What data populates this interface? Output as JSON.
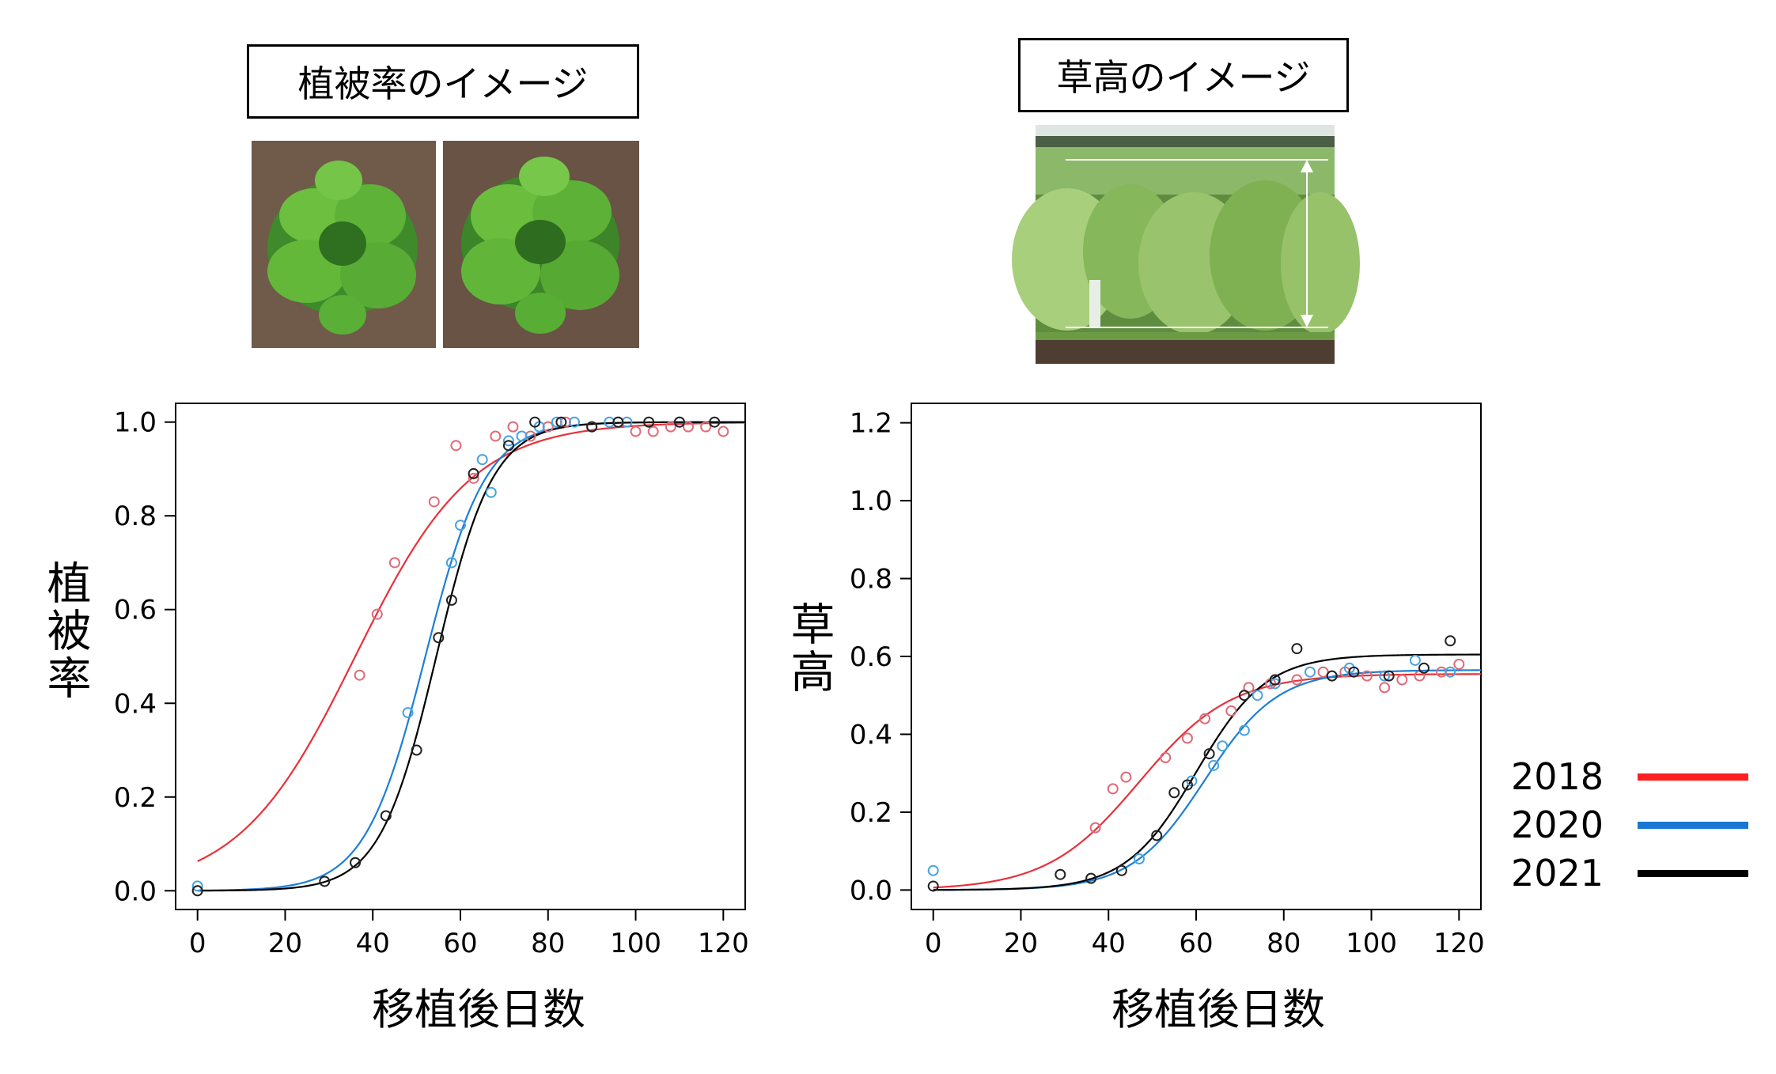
{
  "captions": {
    "cover_image": "植被率のイメージ",
    "height_image": "草高のイメージ"
  },
  "colors": {
    "2018": "#e8313a",
    "2020": "#1c7fd6",
    "2021": "#000000",
    "point_2018": "#e06b78",
    "point_2020": "#4aa3df",
    "point_2021": "#222222"
  },
  "legend": [
    {
      "label": "2018",
      "color": "#ff2020"
    },
    {
      "label": "2020",
      "color": "#1a78d2"
    },
    {
      "label": "2021",
      "color": "#000000"
    }
  ],
  "chart_data": [
    {
      "type": "scatter",
      "ylabel": "植被率",
      "xlabel": "移植後日数",
      "xlim": [
        -5,
        125
      ],
      "ylim": [
        -0.04,
        1.04
      ],
      "xticks": [
        "0",
        "20",
        "40",
        "60",
        "80",
        "100",
        "120"
      ],
      "yticks": [
        "0.0",
        "0.2",
        "0.4",
        "0.6",
        "0.8",
        "1.0"
      ],
      "series": [
        {
          "name": "2018",
          "points": [
            [
              0,
              0.0
            ],
            [
              37,
              0.46
            ],
            [
              41,
              0.59
            ],
            [
              45,
              0.7
            ],
            [
              54,
              0.83
            ],
            [
              59,
              0.95
            ],
            [
              63,
              0.88
            ],
            [
              68,
              0.97
            ],
            [
              72,
              0.99
            ],
            [
              76,
              0.97
            ],
            [
              80,
              0.99
            ],
            [
              84,
              1.0
            ],
            [
              90,
              0.99
            ],
            [
              96,
              1.0
            ],
            [
              100,
              0.98
            ],
            [
              104,
              0.98
            ],
            [
              108,
              0.99
            ],
            [
              112,
              0.99
            ],
            [
              116,
              0.99
            ],
            [
              120,
              0.98
            ]
          ],
          "curve": {
            "kind": "logistic",
            "A": 1.0,
            "x0": 36,
            "k": 0.075
          }
        },
        {
          "name": "2020",
          "points": [
            [
              0,
              0.01
            ],
            [
              48,
              0.38
            ],
            [
              58,
              0.7
            ],
            [
              60,
              0.78
            ],
            [
              65,
              0.92
            ],
            [
              67,
              0.85
            ],
            [
              71,
              0.96
            ],
            [
              74,
              0.97
            ],
            [
              78,
              0.99
            ],
            [
              82,
              1.0
            ],
            [
              86,
              1.0
            ],
            [
              94,
              1.0
            ],
            [
              98,
              1.0
            ],
            [
              110,
              1.0
            ]
          ],
          "curve": {
            "kind": "logistic",
            "A": 1.0,
            "x0": 52,
            "k": 0.145
          }
        },
        {
          "name": "2021",
          "points": [
            [
              0,
              0.0
            ],
            [
              29,
              0.02
            ],
            [
              36,
              0.06
            ],
            [
              43,
              0.16
            ],
            [
              50,
              0.3
            ],
            [
              55,
              0.54
            ],
            [
              58,
              0.62
            ],
            [
              63,
              0.89
            ],
            [
              71,
              0.95
            ],
            [
              77,
              1.0
            ],
            [
              83,
              1.0
            ],
            [
              90,
              0.99
            ],
            [
              96,
              1.0
            ],
            [
              103,
              1.0
            ],
            [
              110,
              1.0
            ],
            [
              118,
              1.0
            ]
          ],
          "curve": {
            "kind": "logistic",
            "A": 1.0,
            "x0": 54.5,
            "k": 0.155
          }
        }
      ]
    },
    {
      "type": "scatter",
      "ylabel": "草高",
      "xlabel": "移植後日数",
      "xlim": [
        -5,
        125
      ],
      "ylim": [
        -0.05,
        1.25
      ],
      "xticks": [
        "0",
        "20",
        "40",
        "60",
        "80",
        "100",
        "120"
      ],
      "yticks": [
        "0.0",
        "0.2",
        "0.4",
        "0.6",
        "0.8",
        "1.0",
        "1.2"
      ],
      "series": [
        {
          "name": "2018",
          "points": [
            [
              37,
              0.16
            ],
            [
              41,
              0.26
            ],
            [
              44,
              0.29
            ],
            [
              53,
              0.34
            ],
            [
              58,
              0.39
            ],
            [
              62,
              0.44
            ],
            [
              68,
              0.46
            ],
            [
              72,
              0.52
            ],
            [
              77,
              0.53
            ],
            [
              83,
              0.54
            ],
            [
              89,
              0.56
            ],
            [
              94,
              0.56
            ],
            [
              99,
              0.55
            ],
            [
              103,
              0.52
            ],
            [
              107,
              0.54
            ],
            [
              111,
              0.55
            ],
            [
              116,
              0.56
            ],
            [
              120,
              0.58
            ]
          ],
          "curve": {
            "kind": "logistic",
            "A": 0.555,
            "x0": 47,
            "k": 0.095
          }
        },
        {
          "name": "2020",
          "points": [
            [
              0,
              0.05
            ],
            [
              47,
              0.08
            ],
            [
              59,
              0.28
            ],
            [
              64,
              0.32
            ],
            [
              66,
              0.37
            ],
            [
              71,
              0.41
            ],
            [
              74,
              0.5
            ],
            [
              78,
              0.53
            ],
            [
              86,
              0.56
            ],
            [
              95,
              0.57
            ],
            [
              103,
              0.55
            ],
            [
              110,
              0.59
            ],
            [
              118,
              0.56
            ]
          ],
          "curve": {
            "kind": "logistic",
            "A": 0.565,
            "x0": 62,
            "k": 0.12
          }
        },
        {
          "name": "2021",
          "points": [
            [
              0,
              0.01
            ],
            [
              29,
              0.04
            ],
            [
              36,
              0.03
            ],
            [
              43,
              0.05
            ],
            [
              51,
              0.14
            ],
            [
              55,
              0.25
            ],
            [
              58,
              0.27
            ],
            [
              63,
              0.35
            ],
            [
              71,
              0.5
            ],
            [
              78,
              0.54
            ],
            [
              83,
              0.62
            ],
            [
              91,
              0.55
            ],
            [
              96,
              0.56
            ],
            [
              104,
              0.55
            ],
            [
              112,
              0.57
            ],
            [
              118,
              0.64
            ]
          ],
          "curve": {
            "kind": "logistic",
            "A": 0.605,
            "x0": 60,
            "k": 0.125
          }
        }
      ]
    }
  ]
}
